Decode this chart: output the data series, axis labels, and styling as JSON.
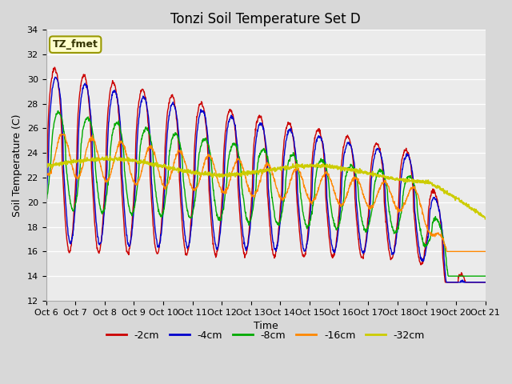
{
  "title": "Tonzi Soil Temperature Set D",
  "xlabel": "Time",
  "ylabel": "Soil Temperature (C)",
  "ylim": [
    12,
    34
  ],
  "yticks": [
    12,
    14,
    16,
    18,
    20,
    22,
    24,
    26,
    28,
    30,
    32,
    34
  ],
  "xtick_labels": [
    "Oct 6",
    "Oct 7",
    "Oct 8",
    "Oct 9",
    "Oct 10",
    "Oct 11",
    "Oct 12",
    "Oct 13",
    "Oct 14",
    "Oct 15",
    "Oct 16",
    "Oct 17",
    "Oct 18",
    "Oct 19",
    "Oct 20",
    "Oct 21"
  ],
  "series_colors": [
    "#cc0000",
    "#0000cc",
    "#00aa00",
    "#ff8800",
    "#cccc00"
  ],
  "series_labels": [
    "-2cm",
    "-4cm",
    "-8cm",
    "-16cm",
    "-32cm"
  ],
  "label_box_text": "TZ_fmet",
  "label_box_bg": "#ffffcc",
  "label_box_edge": "#999900",
  "fig_bg": "#d8d8d8",
  "plot_bg": "#ebebeb",
  "n_days": 15,
  "pts_per_day": 96,
  "title_fontsize": 12,
  "axis_label_fontsize": 9,
  "tick_fontsize": 8,
  "legend_fontsize": 9
}
